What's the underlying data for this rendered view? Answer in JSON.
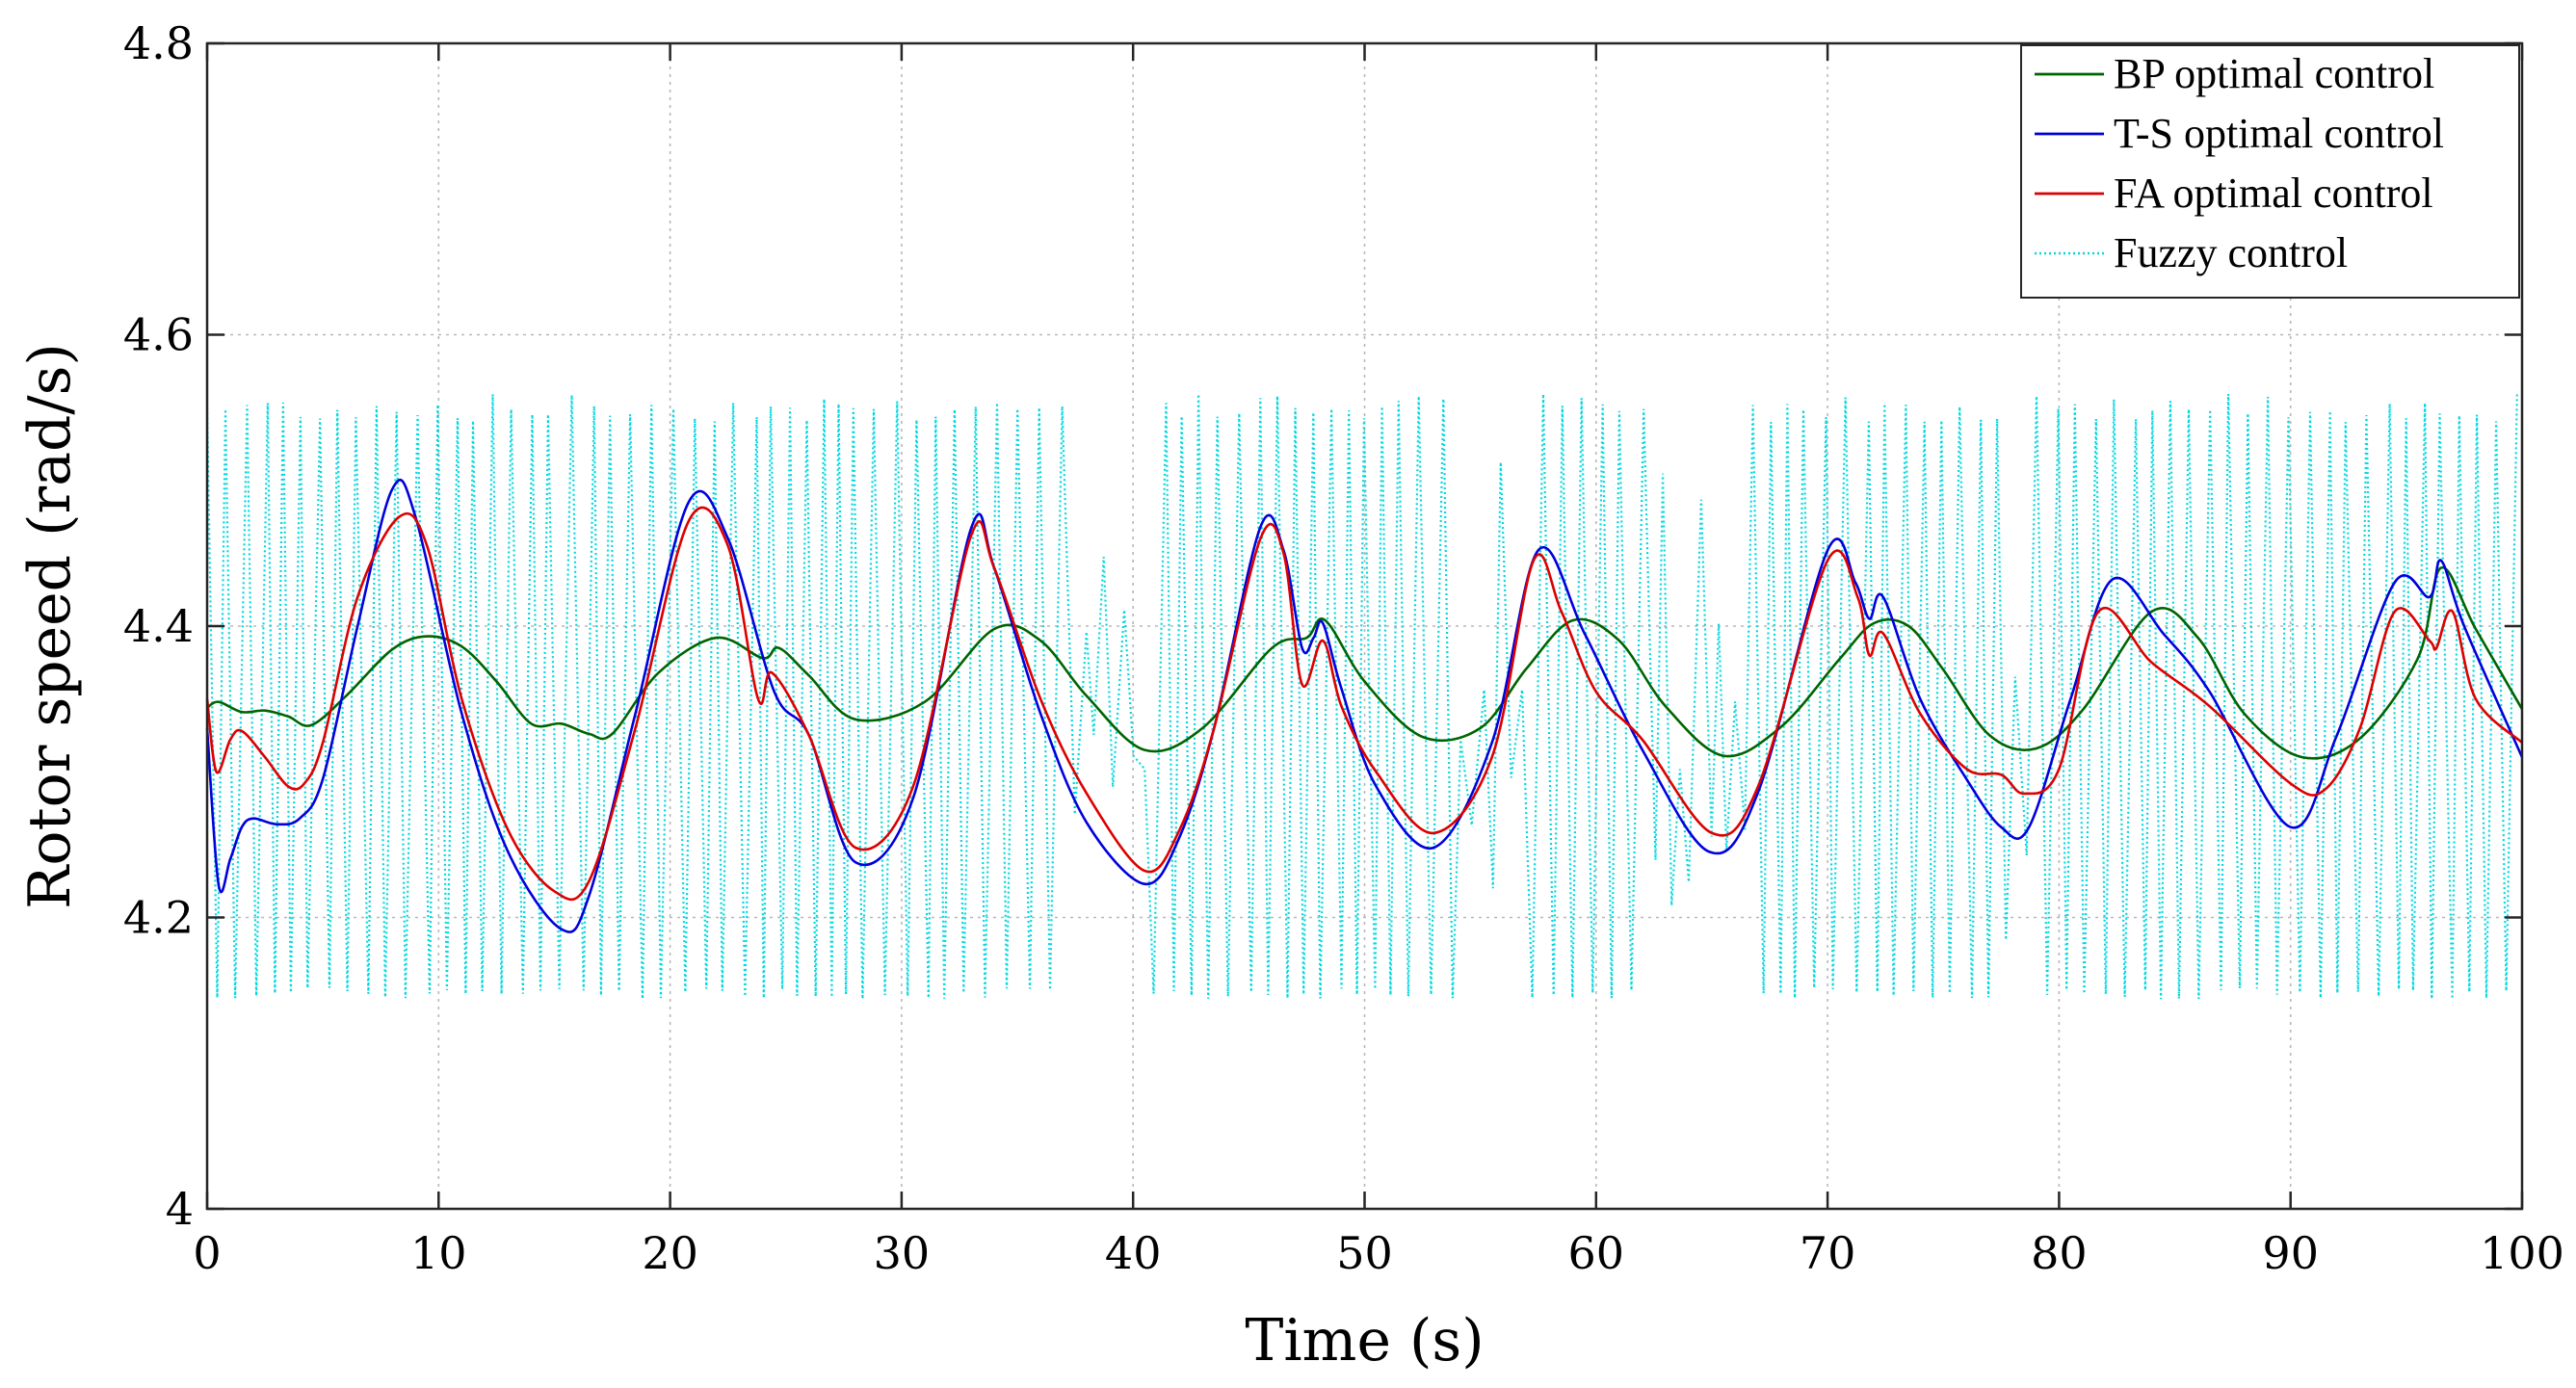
{
  "chart_data": {
    "type": "line",
    "title": "",
    "xlabel": "Time (s)",
    "ylabel": "Rotor speed (rad/s)",
    "xlim": [
      0,
      100
    ],
    "ylim": [
      4,
      4.8
    ],
    "xticks": [
      0,
      10,
      20,
      30,
      40,
      50,
      60,
      70,
      80,
      90,
      100
    ],
    "yticks": [
      4,
      4.2,
      4.4,
      4.6,
      4.8
    ],
    "xtick_labels": [
      "0",
      "10",
      "20",
      "30",
      "40",
      "50",
      "60",
      "70",
      "80",
      "90",
      "100"
    ],
    "ytick_labels": [
      "4",
      "4.2",
      "4.4",
      "4.6",
      "4.8"
    ],
    "grid": true,
    "legend_position": "top-right",
    "series": [
      {
        "name": "BP optimal control",
        "color": "#006400",
        "style": "solid",
        "x": [
          0,
          0.5,
          1.5,
          2.5,
          3.5,
          4.5,
          6,
          8,
          9.5,
          11,
          12.5,
          14,
          15.3,
          16.5,
          17.5,
          19.5,
          22,
          24,
          24.7,
          26,
          28,
          31,
          34,
          36,
          38,
          40.5,
          43,
          46,
          47.5,
          48.3,
          50,
          52.5,
          55,
          57,
          59,
          61,
          63,
          65.5,
          68,
          70.5,
          72,
          73.5,
          75,
          77,
          79,
          81,
          84,
          86,
          88,
          90.5,
          93,
          95.5,
          96.5,
          98,
          100
        ],
        "y": [
          4.344,
          4.348,
          4.341,
          4.342,
          4.338,
          4.332,
          4.352,
          4.384,
          4.393,
          4.386,
          4.362,
          4.333,
          4.333,
          4.326,
          4.326,
          4.368,
          4.392,
          4.378,
          4.385,
          4.366,
          4.336,
          4.348,
          4.398,
          4.39,
          4.352,
          4.315,
          4.33,
          4.385,
          4.392,
          4.404,
          4.362,
          4.324,
          4.33,
          4.371,
          4.404,
          4.39,
          4.345,
          4.311,
          4.331,
          4.377,
          4.402,
          4.4,
          4.37,
          4.325,
          4.316,
          4.342,
          4.41,
          4.392,
          4.34,
          4.31,
          4.323,
          4.378,
          4.44,
          4.398,
          4.343
        ]
      },
      {
        "name": "T-S optimal control",
        "color": "#0000dd",
        "style": "solid",
        "x": [
          0,
          0.5,
          1,
          1.5,
          2,
          3,
          4,
          5,
          6.5,
          8,
          9,
          11,
          13,
          15.3,
          16.5,
          18.5,
          20.8,
          22.5,
          24.5,
          26,
          28,
          30.5,
          33,
          34,
          36,
          38,
          40.5,
          42,
          43.5,
          45.5,
          46.5,
          47.3,
          47.8,
          48.2,
          49,
          50.5,
          53,
          55.5,
          57.5,
          59.5,
          62,
          64.9,
          67,
          70,
          71.2,
          71.8,
          72.4,
          74,
          76,
          77.5,
          78.7,
          80.5,
          82.3,
          84.5,
          86.5,
          90,
          92,
          94.5,
          96,
          96.5,
          97.5,
          100
        ],
        "y": [
          4.33,
          4.222,
          4.24,
          4.262,
          4.268,
          4.264,
          4.268,
          4.295,
          4.4,
          4.494,
          4.475,
          4.34,
          4.245,
          4.192,
          4.215,
          4.34,
          4.485,
          4.46,
          4.355,
          4.325,
          4.238,
          4.282,
          4.467,
          4.44,
          4.34,
          4.265,
          4.223,
          4.255,
          4.33,
          4.468,
          4.452,
          4.385,
          4.392,
          4.402,
          4.357,
          4.29,
          4.248,
          4.32,
          4.452,
          4.395,
          4.315,
          4.245,
          4.286,
          4.452,
          4.43,
          4.405,
          4.42,
          4.35,
          4.295,
          4.262,
          4.262,
          4.35,
          4.432,
          4.395,
          4.355,
          4.262,
          4.325,
          4.43,
          4.42,
          4.445,
          4.4,
          4.31
        ]
      },
      {
        "name": "FA optimal control",
        "color": "#dd0000",
        "style": "solid",
        "x": [
          0,
          0.4,
          1,
          1.5,
          2.5,
          3.5,
          4.2,
          5,
          6.5,
          8.3,
          9.5,
          11,
          13,
          15,
          16.5,
          18.5,
          20.8,
          22.5,
          23.8,
          24.4,
          26,
          28,
          30.5,
          33,
          34,
          36,
          38,
          40.5,
          42,
          43.5,
          45.5,
          46.5,
          47.3,
          48.2,
          49,
          50.5,
          53,
          55.5,
          57.3,
          58.5,
          60,
          62,
          65,
          67,
          70,
          71.3,
          71.8,
          72.4,
          74,
          76,
          77.5,
          78.5,
          80,
          81.7,
          84,
          86.5,
          90,
          91.5,
          93,
          94.5,
          96,
          96.3,
          97,
          98,
          100
        ],
        "y": [
          4.35,
          4.3,
          4.322,
          4.328,
          4.31,
          4.29,
          4.292,
          4.32,
          4.42,
          4.475,
          4.455,
          4.35,
          4.26,
          4.218,
          4.225,
          4.33,
          4.472,
          4.455,
          4.35,
          4.368,
          4.325,
          4.248,
          4.29,
          4.462,
          4.44,
          4.35,
          4.285,
          4.232,
          4.26,
          4.33,
          4.46,
          4.45,
          4.36,
          4.39,
          4.345,
          4.3,
          4.258,
          4.31,
          4.445,
          4.41,
          4.355,
          4.322,
          4.258,
          4.29,
          4.445,
          4.42,
          4.38,
          4.395,
          4.34,
          4.302,
          4.298,
          4.285,
          4.302,
          4.41,
          4.375,
          4.345,
          4.292,
          4.288,
          4.33,
          4.41,
          4.39,
          4.385,
          4.41,
          4.35,
          4.32
        ]
      },
      {
        "name": "Fuzzy control",
        "color": "#00d8e0",
        "style": "dotted",
        "high": 4.552,
        "low": 4.148,
        "switch_period": 0.42,
        "sparse_intervals": [
          [
            37,
            40.5
          ],
          [
            54,
            57
          ],
          [
            62.5,
            66.5
          ],
          [
            77.5,
            79
          ]
        ]
      }
    ]
  }
}
